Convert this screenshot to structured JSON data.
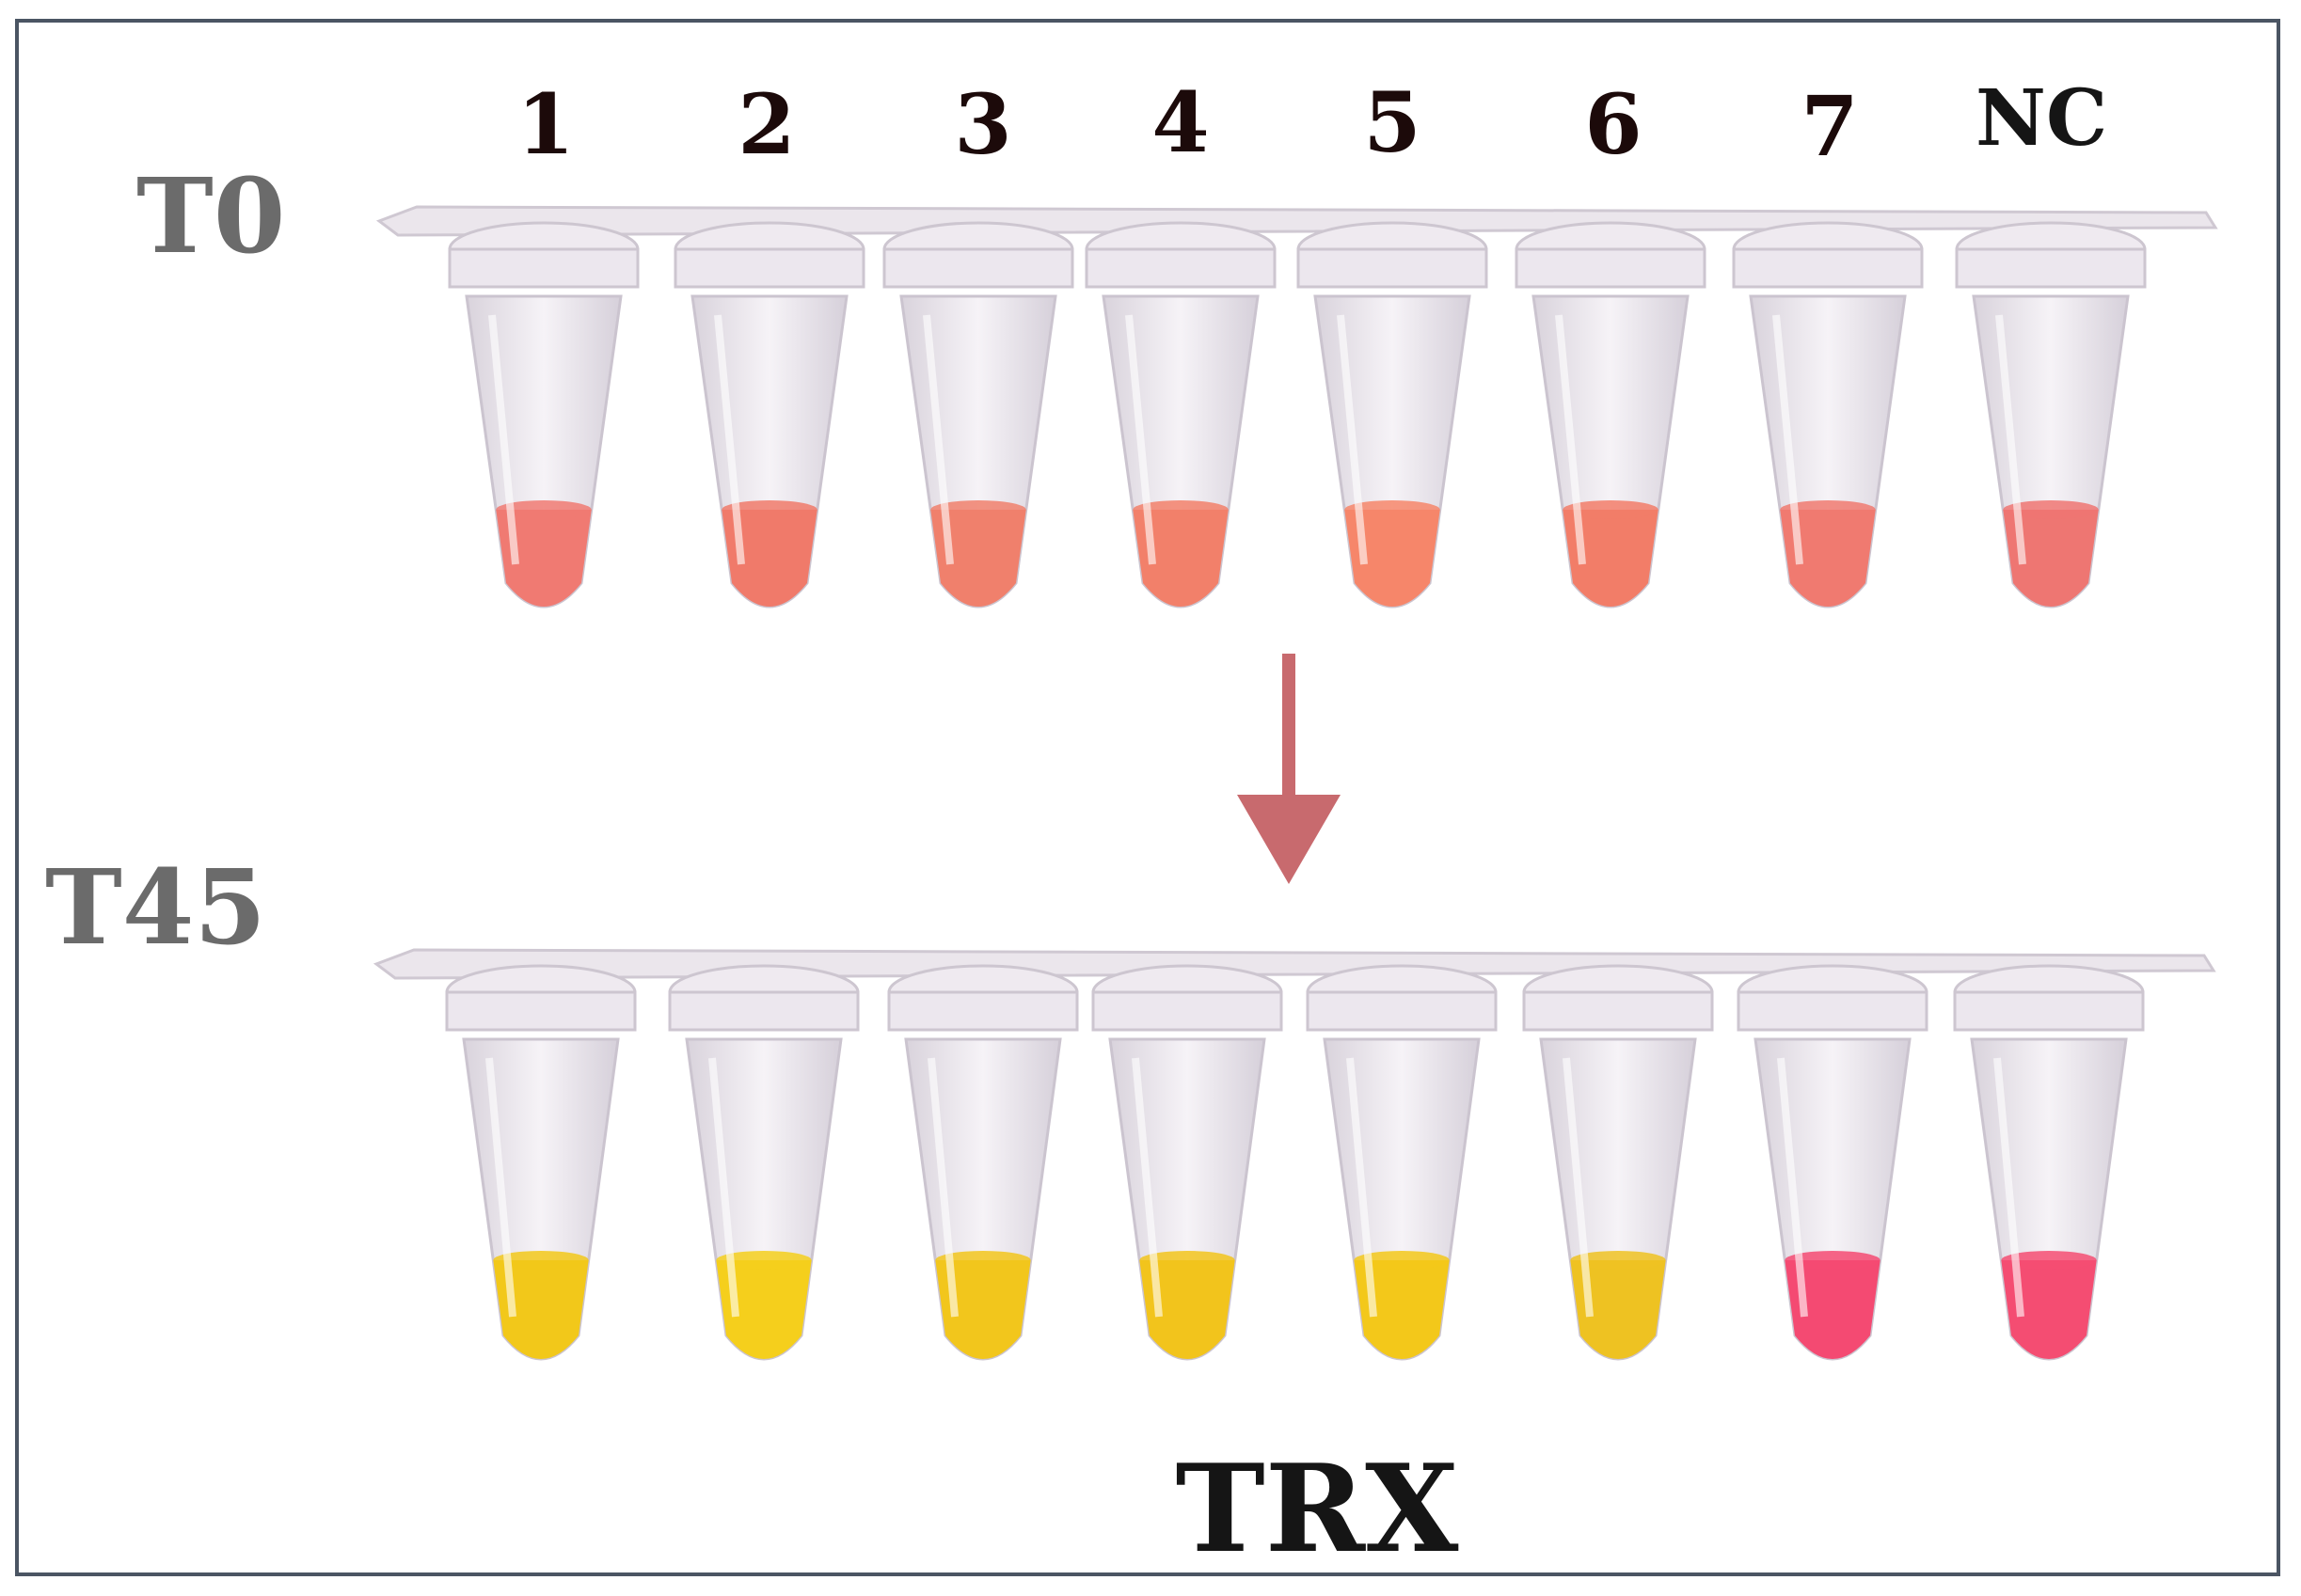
{
  "lanes": [
    "1",
    "2",
    "3",
    "4",
    "5",
    "6",
    "7",
    "NC"
  ],
  "row_labels": {
    "t0": "T0",
    "t45": "T45"
  },
  "caption": "TRX",
  "colors": {
    "frame": "#4b5563",
    "arrow": "#c86a6e",
    "t0_liquid": [
      "#f07a72",
      "#f07a6a",
      "#f0806c",
      "#f2806a",
      "#f6866a",
      "#f27d68",
      "#f07a70",
      "#ee7672"
    ],
    "t45_liquid": [
      "#f2c81a",
      "#f5cf1c",
      "#f2c61c",
      "#f2c41c",
      "#f3c81a",
      "#eec222",
      "#f44a72",
      "#f44d72"
    ],
    "tube_wall": "#e9e4ea",
    "lane_label_text": "#1c0a0a",
    "row_label_text": "#6b6b6b"
  },
  "icons": {
    "process_arrow": "down-arrow-icon"
  }
}
